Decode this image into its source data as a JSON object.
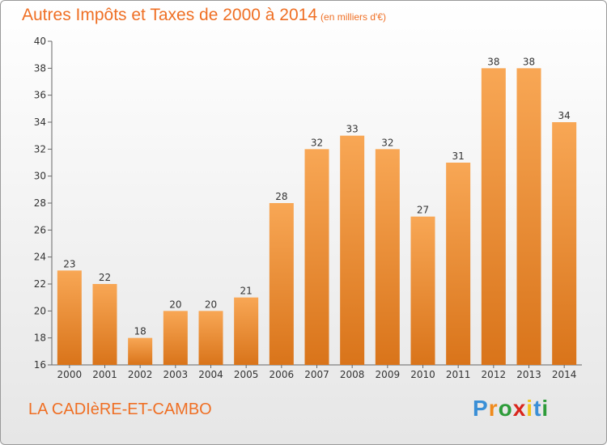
{
  "title": "Autres Impôts et Taxes de 2000 à 2014",
  "title_unit": "(en milliers d'€)",
  "town": "LA CADIèRE-ET-CAMBO",
  "brand": {
    "letters": [
      "P",
      "r",
      "o",
      "x",
      "i",
      "t",
      "i"
    ],
    "colors": [
      "#3a8fd6",
      "#f08a1c",
      "#2e9c3a",
      "#d9261c",
      "#f0c419",
      "#3a8fd6",
      "#2e9c3a"
    ]
  },
  "colors": {
    "accent": "#ef6f24",
    "bar_light": "#f8a755",
    "bar_dark": "#d9741a"
  },
  "chart_data": {
    "type": "bar",
    "categories": [
      "2000",
      "2001",
      "2002",
      "2003",
      "2004",
      "2005",
      "2006",
      "2007",
      "2008",
      "2009",
      "2010",
      "2011",
      "2012",
      "2013",
      "2014"
    ],
    "values": [
      23,
      22,
      18,
      20,
      20,
      21,
      28,
      32,
      33,
      32,
      27,
      31,
      38,
      38,
      34
    ],
    "title": "Autres Impôts et Taxes de 2000 à 2014",
    "xlabel": "",
    "ylabel": "",
    "ylim": [
      16,
      40
    ],
    "yticks": [
      16,
      18,
      20,
      22,
      24,
      26,
      28,
      30,
      32,
      34,
      36,
      38,
      40
    ],
    "grid": false,
    "data_labels": true
  }
}
